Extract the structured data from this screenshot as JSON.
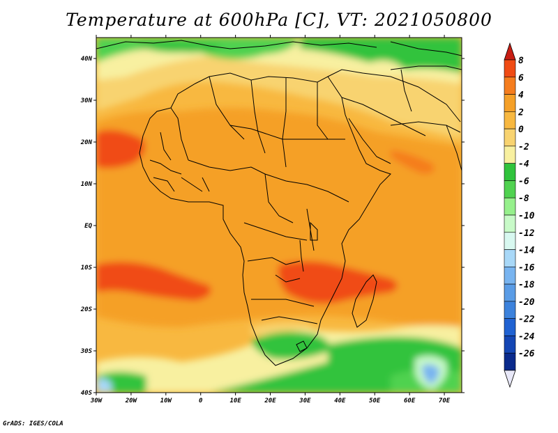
{
  "title": "Temperature at 600hPa [C], VT: 2021050800",
  "credit": "GrADS: IGES/COLA",
  "map": {
    "lon_range": [
      -30,
      75
    ],
    "lat_range": [
      -40,
      45
    ],
    "lat_labels": [
      "40N",
      "30N",
      "20N",
      "10N",
      "EQ",
      "10S",
      "20S",
      "30S",
      "40S"
    ],
    "lat_values": [
      40,
      30,
      20,
      10,
      0,
      -10,
      -20,
      -30,
      -40
    ],
    "lon_labels": [
      "30W",
      "20W",
      "10W",
      "0",
      "10E",
      "20E",
      "30E",
      "40E",
      "50E",
      "60E",
      "70E"
    ],
    "lon_values": [
      -30,
      -20,
      -10,
      0,
      10,
      20,
      30,
      40,
      50,
      60,
      70
    ]
  },
  "colorbar": {
    "labels": [
      "8",
      "6",
      "4",
      "2",
      "0",
      "-2",
      "-4",
      "-6",
      "-8",
      "-10",
      "-12",
      "-14",
      "-16",
      "-18",
      "-20",
      "-22",
      "-24",
      "-26"
    ],
    "colors": [
      "#c81e14",
      "#f04b14",
      "#f57d1e",
      "#f5a028",
      "#f8b840",
      "#f8d370",
      "#f8f0a0",
      "#30c33c",
      "#50d250",
      "#96f08c",
      "#c8fac8",
      "#d8f8f0",
      "#a8d8f8",
      "#78b4f0",
      "#5a9ce6",
      "#3c82dc",
      "#2062d2",
      "#1446b4",
      "#0a2a8c",
      "#081870"
    ]
  }
}
